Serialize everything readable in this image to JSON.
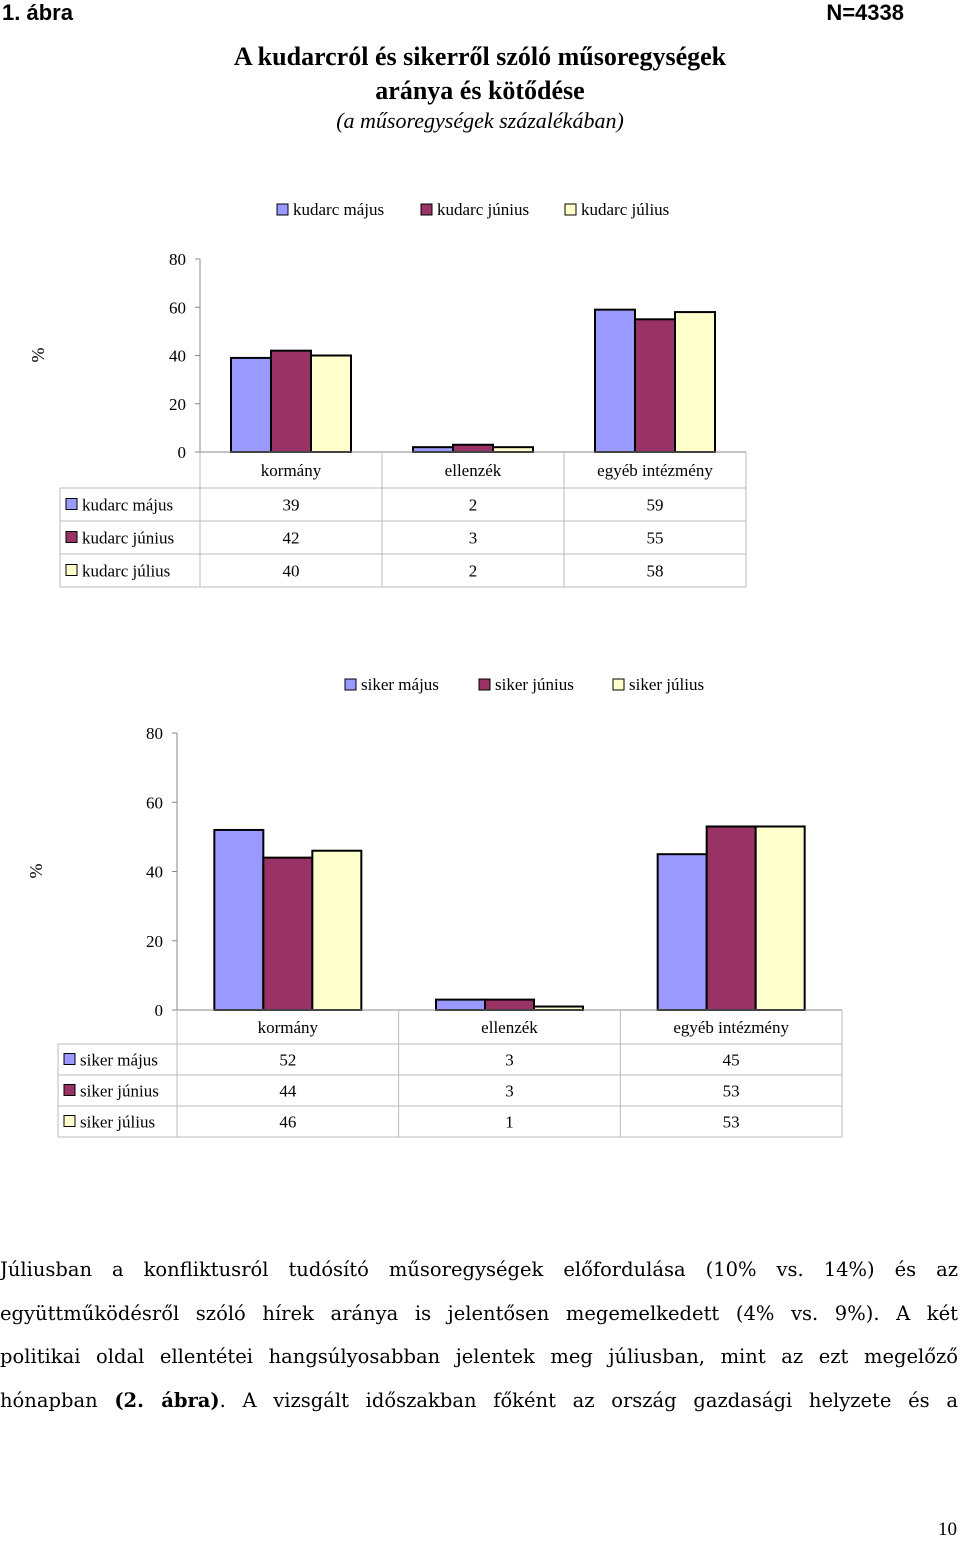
{
  "figure": {
    "label": "1. ábra",
    "n_label": "N=4338",
    "title_line1": "A kudarcról és sikerről szóló műsoregységek",
    "title_line2": "aránya és kötődése",
    "subtitle": "(a műsoregységek százalékában)"
  },
  "colors": {
    "may": "#9999ff",
    "june": "#993366",
    "july": "#ffffcc"
  },
  "chart_data": [
    {
      "type": "bar",
      "ylabel": "%",
      "ylim": [
        0,
        80
      ],
      "yticks": [
        0,
        20,
        40,
        60,
        80
      ],
      "categories": [
        "kormány",
        "ellenzék",
        "egyéb intézmény"
      ],
      "legend": "top",
      "series": [
        {
          "name": "kudarc május",
          "values": [
            39,
            2,
            59
          ]
        },
        {
          "name": "kudarc június",
          "values": [
            42,
            3,
            55
          ]
        },
        {
          "name": "kudarc július",
          "values": [
            40,
            2,
            58
          ]
        }
      ]
    },
    {
      "type": "bar",
      "ylabel": "%",
      "ylim": [
        0,
        80
      ],
      "yticks": [
        0,
        20,
        40,
        60,
        80
      ],
      "categories": [
        "kormány",
        "ellenzék",
        "egyéb intézmény"
      ],
      "legend": "top",
      "series": [
        {
          "name": "siker május",
          "values": [
            52,
            3,
            45
          ]
        },
        {
          "name": "siker június",
          "values": [
            44,
            3,
            53
          ]
        },
        {
          "name": "siker július",
          "values": [
            46,
            1,
            53
          ]
        }
      ]
    }
  ],
  "paragraph_lines": [
    "Júliusban a konfliktusról tudósító műsoregységek előfordulása (10% vs. 14%) és az",
    "együttműködésről szóló hírek aránya is jelentősen megemelkedett (4% vs. 9%). A két",
    "politikai oldal ellentétei hangsúlyosabban jelentek meg júliusban, mint az ezt megelőző"
  ],
  "last_line": {
    "before": "hónapban ",
    "bold": "(2. ábra)",
    "after": ". A vizsgált időszakban főként az ország gazdasági helyzete és a"
  },
  "page_number": "10"
}
